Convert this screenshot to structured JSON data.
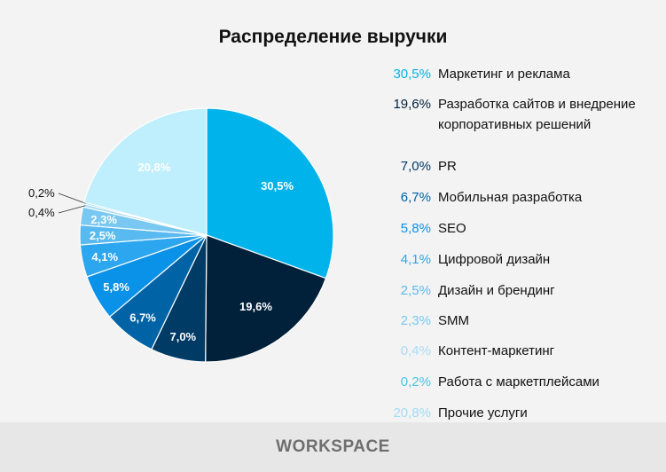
{
  "chart_data": {
    "type": "pie",
    "title": "Распределение выручки",
    "start": "top",
    "direction": "clockwise",
    "slices": [
      {
        "label": "Маркетинг и реклама",
        "value": 30.5,
        "text": "30,5%",
        "color": "#00b4eb"
      },
      {
        "label": "Разработка сайтов и внедрение корпоративных решений",
        "value": 19.6,
        "text": "19,6%",
        "color": "#01203a"
      },
      {
        "label": "PR",
        "value": 7.0,
        "text": "7,0%",
        "color": "#003b66"
      },
      {
        "label": "Мобильная разработка",
        "value": 6.7,
        "text": "6,7%",
        "color": "#0063a6"
      },
      {
        "label": "SEO",
        "value": 5.8,
        "text": "5,8%",
        "color": "#0a91e8"
      },
      {
        "label": "Цифровой дизайн",
        "value": 4.1,
        "text": "4,1%",
        "color": "#2ba6ef"
      },
      {
        "label": "Дизайн и брендинг",
        "value": 2.5,
        "text": "2,5%",
        "color": "#58baf0"
      },
      {
        "label": "SMM",
        "value": 2.3,
        "text": "2,3%",
        "color": "#79c8f2"
      },
      {
        "label": "Контент-маркетинг",
        "value": 0.4,
        "text": "0,4%",
        "color": "#a9dcf5"
      },
      {
        "label": "Работа с маркетплейсами",
        "value": 0.2,
        "text": "0,2%",
        "color": "#4fc3ea"
      },
      {
        "label": "Прочие услуги",
        "value": 20.8,
        "text": "20,8%",
        "color": "#bfeefd"
      }
    ],
    "legend_position": "right"
  },
  "footer": {
    "logo": "WORKSPACE"
  }
}
